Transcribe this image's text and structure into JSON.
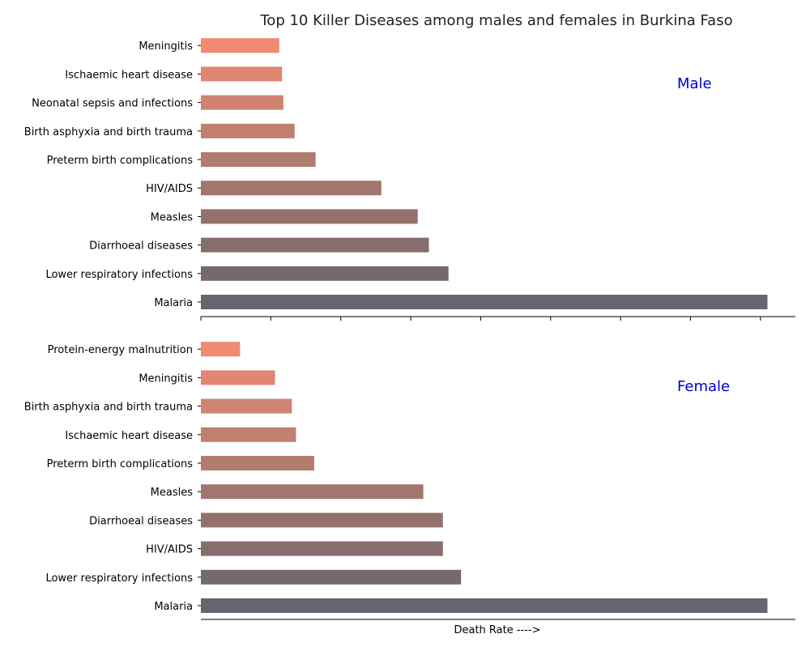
{
  "chart_data": {
    "type": "bar",
    "orientation": "horizontal",
    "title": "Top 10 Killer Diseases among males and females in Burkina Faso",
    "xlabel": "Death Rate ---->",
    "ylabel": "",
    "xlim": [
      0,
      42.5
    ],
    "tick_labels_shown": false,
    "grid": false,
    "panels": [
      {
        "name": "Male",
        "label_color": "#0000cc",
        "categories": [
          "Malaria",
          "Lower respiratory infections",
          "Diarrhoeal diseases",
          "Measles",
          "HIV/AIDS",
          "Preterm birth complications",
          "Birth asphyxia and birth trauma",
          "Neonatal sepsis and infections",
          "Ischaemic heart disease",
          "Meningitis"
        ],
        "values": [
          40.5,
          17.7,
          16.3,
          15.5,
          12.9,
          8.2,
          6.7,
          5.9,
          5.8,
          5.6
        ],
        "colors": [
          "#65656e",
          "#76696d",
          "#856e6c",
          "#93726c",
          "#a3766d",
          "#b27c6e",
          "#c07f6f",
          "#d08371",
          "#e08672",
          "#ef8a73"
        ]
      },
      {
        "name": "Female",
        "label_color": "#0000cc",
        "categories": [
          "Malaria",
          "Lower respiratory infections",
          "HIV/AIDS",
          "Diarrhoeal diseases",
          "Measles",
          "Preterm birth complications",
          "Ischaemic heart disease",
          "Birth asphyxia and birth trauma",
          "Meningitis",
          "Protein-energy malnutrition"
        ],
        "values": [
          40.5,
          18.6,
          17.3,
          17.3,
          15.9,
          8.1,
          6.8,
          6.5,
          5.3,
          2.8
        ],
        "colors": [
          "#65656e",
          "#76696d",
          "#856e6c",
          "#93726c",
          "#a3766d",
          "#b27c6e",
          "#c07f6f",
          "#d08371",
          "#e08672",
          "#ef8a73"
        ]
      }
    ]
  }
}
